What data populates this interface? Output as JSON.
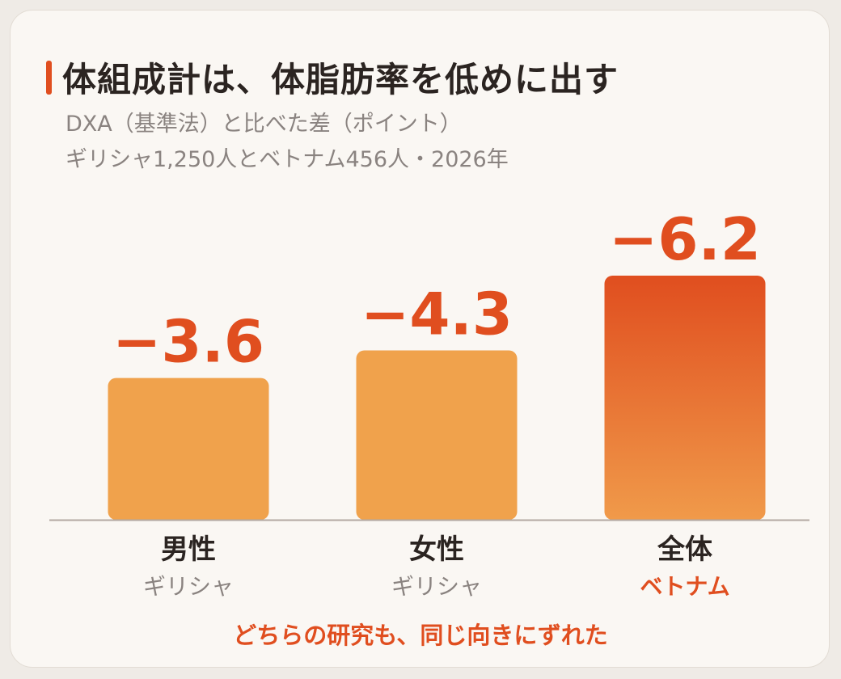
{
  "title": "体組成計は、体脂肪率を低めに出す",
  "subtitle_line1": "DXA（基準法）と比べた差（ポイント）",
  "subtitle_line2": "ギリシャ1,250人とベトナム456人・2026年",
  "footnote": "どちらの研究も、同じ向きにずれた",
  "colors": {
    "accent": "#e04e1f",
    "bar": "#f0a24c",
    "bar_highlight_top": "#e04e1f",
    "bar_highlight_bottom": "#f09a4a",
    "axis": "#b3a9a2",
    "label_main": "#2b2421",
    "label_sub": "#8a8380"
  },
  "chart_data": {
    "type": "bar",
    "title": "体組成計は、体脂肪率を低めに出す",
    "ylabel": "",
    "categories": [
      "男性",
      "女性",
      "全体"
    ],
    "subcategories": [
      "ギリシャ",
      "ギリシャ",
      "ベトナム"
    ],
    "values": [
      -3.6,
      -4.3,
      -6.2
    ],
    "value_labels": [
      "−3.6",
      "−4.3",
      "−6.2"
    ],
    "highlight_index": 2,
    "ylim": [
      -6.5,
      0
    ],
    "grid": false,
    "legend": "none"
  }
}
